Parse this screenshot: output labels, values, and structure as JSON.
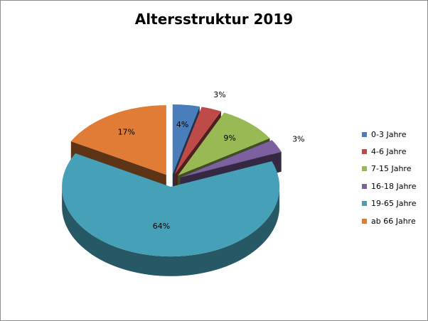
{
  "chart_data": {
    "type": "pie",
    "title": "Altersstruktur 2019",
    "categories": [
      "0-3 Jahre",
      "4-6 Jahre",
      "7-15 Jahre",
      "16-18 Jahre",
      "19-65 Jahre",
      "ab 66 Jahre"
    ],
    "values": [
      4,
      3,
      9,
      3,
      64,
      17
    ],
    "data_labels": [
      "4%",
      "3%",
      "9%",
      "3%",
      "64%",
      "17%"
    ],
    "colors": [
      "#4a7ebb",
      "#be4b48",
      "#98b954",
      "#7d60a0",
      "#46a0b8",
      "#e07c36"
    ],
    "legend": "right",
    "style": "3d-exploded"
  }
}
